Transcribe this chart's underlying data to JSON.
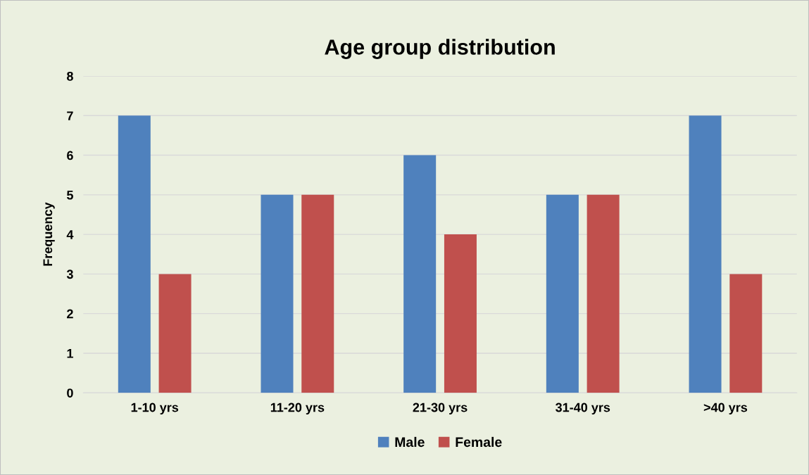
{
  "chart_data": {
    "type": "bar",
    "title": "Age group distribution",
    "ylabel": "Frequency",
    "categories": [
      "1-10 yrs",
      "11-20 yrs",
      "21-30 yrs",
      "31-40 yrs",
      ">40 yrs"
    ],
    "series": [
      {
        "name": "Male",
        "color": "#4f81bd",
        "values": [
          7,
          5,
          6,
          5,
          7
        ]
      },
      {
        "name": "Female",
        "color": "#c0504d",
        "values": [
          3,
          5,
          4,
          5,
          3
        ]
      }
    ],
    "ylim": [
      0,
      8
    ],
    "yticks": [
      0,
      1,
      2,
      3,
      4,
      5,
      6,
      7,
      8
    ],
    "grid": "y",
    "legend": "bottom"
  }
}
